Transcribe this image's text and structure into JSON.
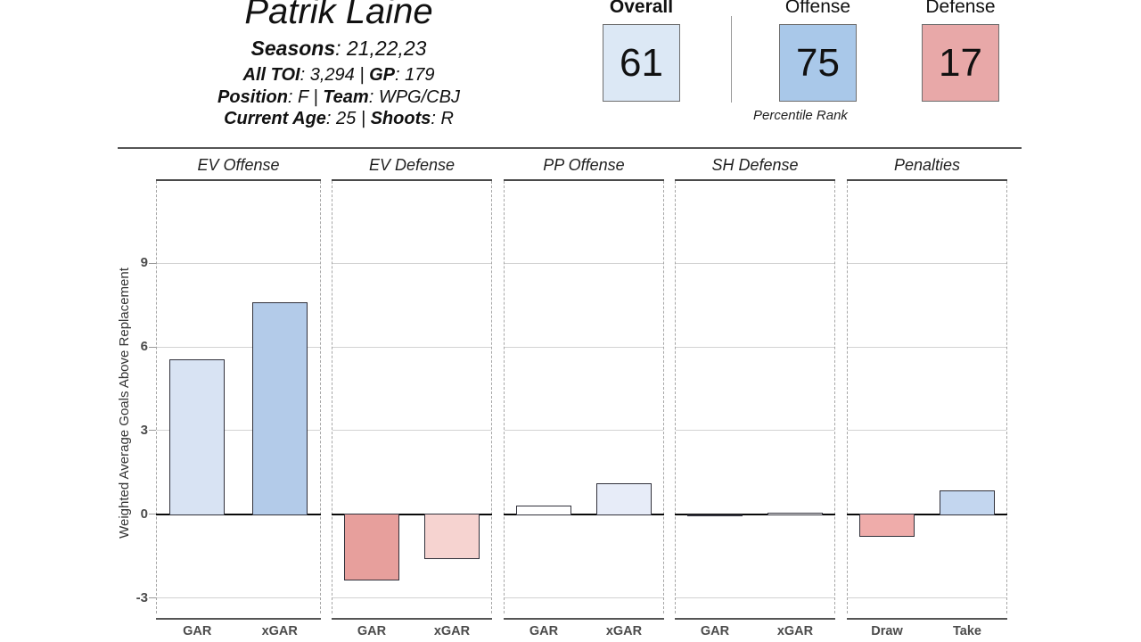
{
  "player": {
    "name": "Patrik Laine",
    "info_lines": [
      [
        {
          "b": "Seasons"
        },
        {
          "t": ": 21,22,23"
        }
      ],
      [
        {
          "b": "All TOI"
        },
        {
          "t": ": 3,294 | "
        },
        {
          "b": "GP"
        },
        {
          "t": ": 179"
        }
      ],
      [
        {
          "b": "Position"
        },
        {
          "t": ": F | "
        },
        {
          "b": "Team"
        },
        {
          "t": ": WPG/CBJ"
        }
      ],
      [
        {
          "b": "Current Age"
        },
        {
          "t": ": 25 | "
        },
        {
          "b": "Shoots"
        },
        {
          "t": ": R"
        }
      ]
    ]
  },
  "percentiles": {
    "caption": "Percentile Rank",
    "items": [
      {
        "label": "Overall",
        "value": "61",
        "color": "#dce8f5",
        "bold_label": true
      },
      {
        "label": "Offense",
        "value": "75",
        "color": "#a9c8e9",
        "bold_label": false
      },
      {
        "label": "Defense",
        "value": "17",
        "color": "#e8a8a8",
        "bold_label": false
      }
    ]
  },
  "chart_data": {
    "type": "bar",
    "ylabel": "Weighted Average Goals Above Replacement",
    "yticks": [
      9,
      6,
      3,
      0,
      -3
    ],
    "ylim": [
      -3.75,
      11.95
    ],
    "grid": true,
    "legend": "none",
    "panels": [
      {
        "title": "EV Offense",
        "categories": [
          "GAR",
          "xGAR"
        ],
        "values": [
          5.55,
          7.6
        ],
        "colors": [
          "#d8e3f3",
          "#b3cbe9"
        ]
      },
      {
        "title": "EV Defense",
        "categories": [
          "GAR",
          "xGAR"
        ],
        "values": [
          -2.35,
          -1.6
        ],
        "colors": [
          "#e79f9c",
          "#f6d3d0"
        ]
      },
      {
        "title": "PP Offense",
        "categories": [
          "GAR",
          "xGAR"
        ],
        "values": [
          0.3,
          1.1
        ],
        "colors": [
          "#ffffff",
          "#e7ecf8"
        ]
      },
      {
        "title": "SH Defense",
        "categories": [
          "GAR",
          "xGAR"
        ],
        "values": [
          0,
          0.05
        ],
        "colors": [
          "#ffffff",
          "#ffffff"
        ]
      },
      {
        "title": "Penalties",
        "categories": [
          "Draw",
          "Take"
        ],
        "values": [
          -0.8,
          0.85
        ],
        "colors": [
          "#efacaa",
          "#c3d6ef"
        ]
      }
    ]
  }
}
